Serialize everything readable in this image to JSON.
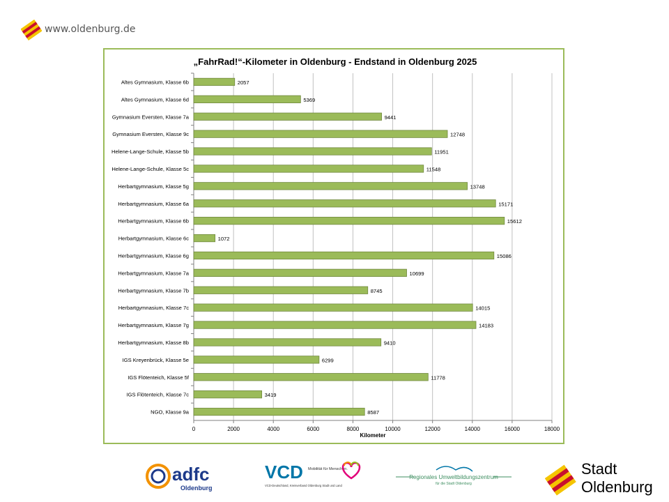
{
  "header": {
    "url": "www.oldenburg.de",
    "logo_icon": "oldenburg-flag-icon"
  },
  "colors": {
    "bar_fill": "#9bbb59",
    "bar_stroke": "#71893f",
    "frame": "#9bbb59",
    "grid": "#c0c0c0",
    "adfc_orange": "#f39200",
    "adfc_blue": "#1d3a8a",
    "vcd_blue": "#0076a8",
    "stadt_red": "#c8102e",
    "stadt_yellow": "#f5c400"
  },
  "chart_data": {
    "type": "bar",
    "orientation": "horizontal",
    "title": "„FahrRad!“-Kilometer in Oldenburg - Endstand in Oldenburg 2025",
    "xlabel": "Kilometer",
    "ylabel": "",
    "xlim": [
      0,
      18000
    ],
    "xticks": [
      0,
      2000,
      4000,
      6000,
      8000,
      10000,
      12000,
      14000,
      16000,
      18000
    ],
    "grid": true,
    "data_labels": true,
    "categories": [
      "Altes Gymnasium, Klasse 6b",
      "Altes Gymnasium, Klasse 6d",
      "Gymnasium Eversten, Klasse 7a",
      "Gymnasium Eversten, Klasse 9c",
      "Helene-Lange-Schule, Klasse 5b",
      "Helene-Lange-Schule, Klasse 5c",
      "Herbartgymnasium, Klasse 5g",
      "Herbartgymnasium, Klasse 6a",
      "Herbartgymnasium, Klasse 6b",
      "Herbartgymnasium, Klasse 6c",
      "Herbartgymnasium, Klasse 6g",
      "Herbartgymnasium, Klasse 7a",
      "Herbartgymnasium, Klasse 7b",
      "Herbartgymnasium, Klasse 7c",
      "Herbartgymnasium, Klasse 7g",
      "Herbartgymnasium, Klasse 8b",
      "IGS Kreyenbrück, Klasse 5e",
      "IGS Flötenteich, Klasse 5f",
      "IGS Flötenteich, Klasse 7c",
      "NGO, Klasse 9a"
    ],
    "values": [
      2057,
      5369,
      9441,
      12748,
      11951,
      11548,
      13748,
      15171,
      15612,
      1072,
      15086,
      10699,
      8745,
      14015,
      14183,
      9410,
      6299,
      11778,
      3419,
      8587
    ]
  },
  "footer": {
    "adfc": {
      "name": "adfc",
      "sub": "Oldenburg",
      "icon": "adfc-logo-icon"
    },
    "vcd": {
      "name": "VCD",
      "tagline": "Mobilität für Menschen.",
      "sub": "VCD-Deutschland, Kreisverband Oldenburg Stadt und Land",
      "icon": "vcd-heart-icon"
    },
    "ubz": {
      "name": "Regionales Umweltbildungszentrum",
      "sub": "für die Stadt Oldenburg",
      "icon": "ubz-bird-icon"
    },
    "stadt": {
      "line1": "Stadt",
      "line2": "Oldenburg",
      "icon": "oldenburg-flag-icon"
    }
  }
}
